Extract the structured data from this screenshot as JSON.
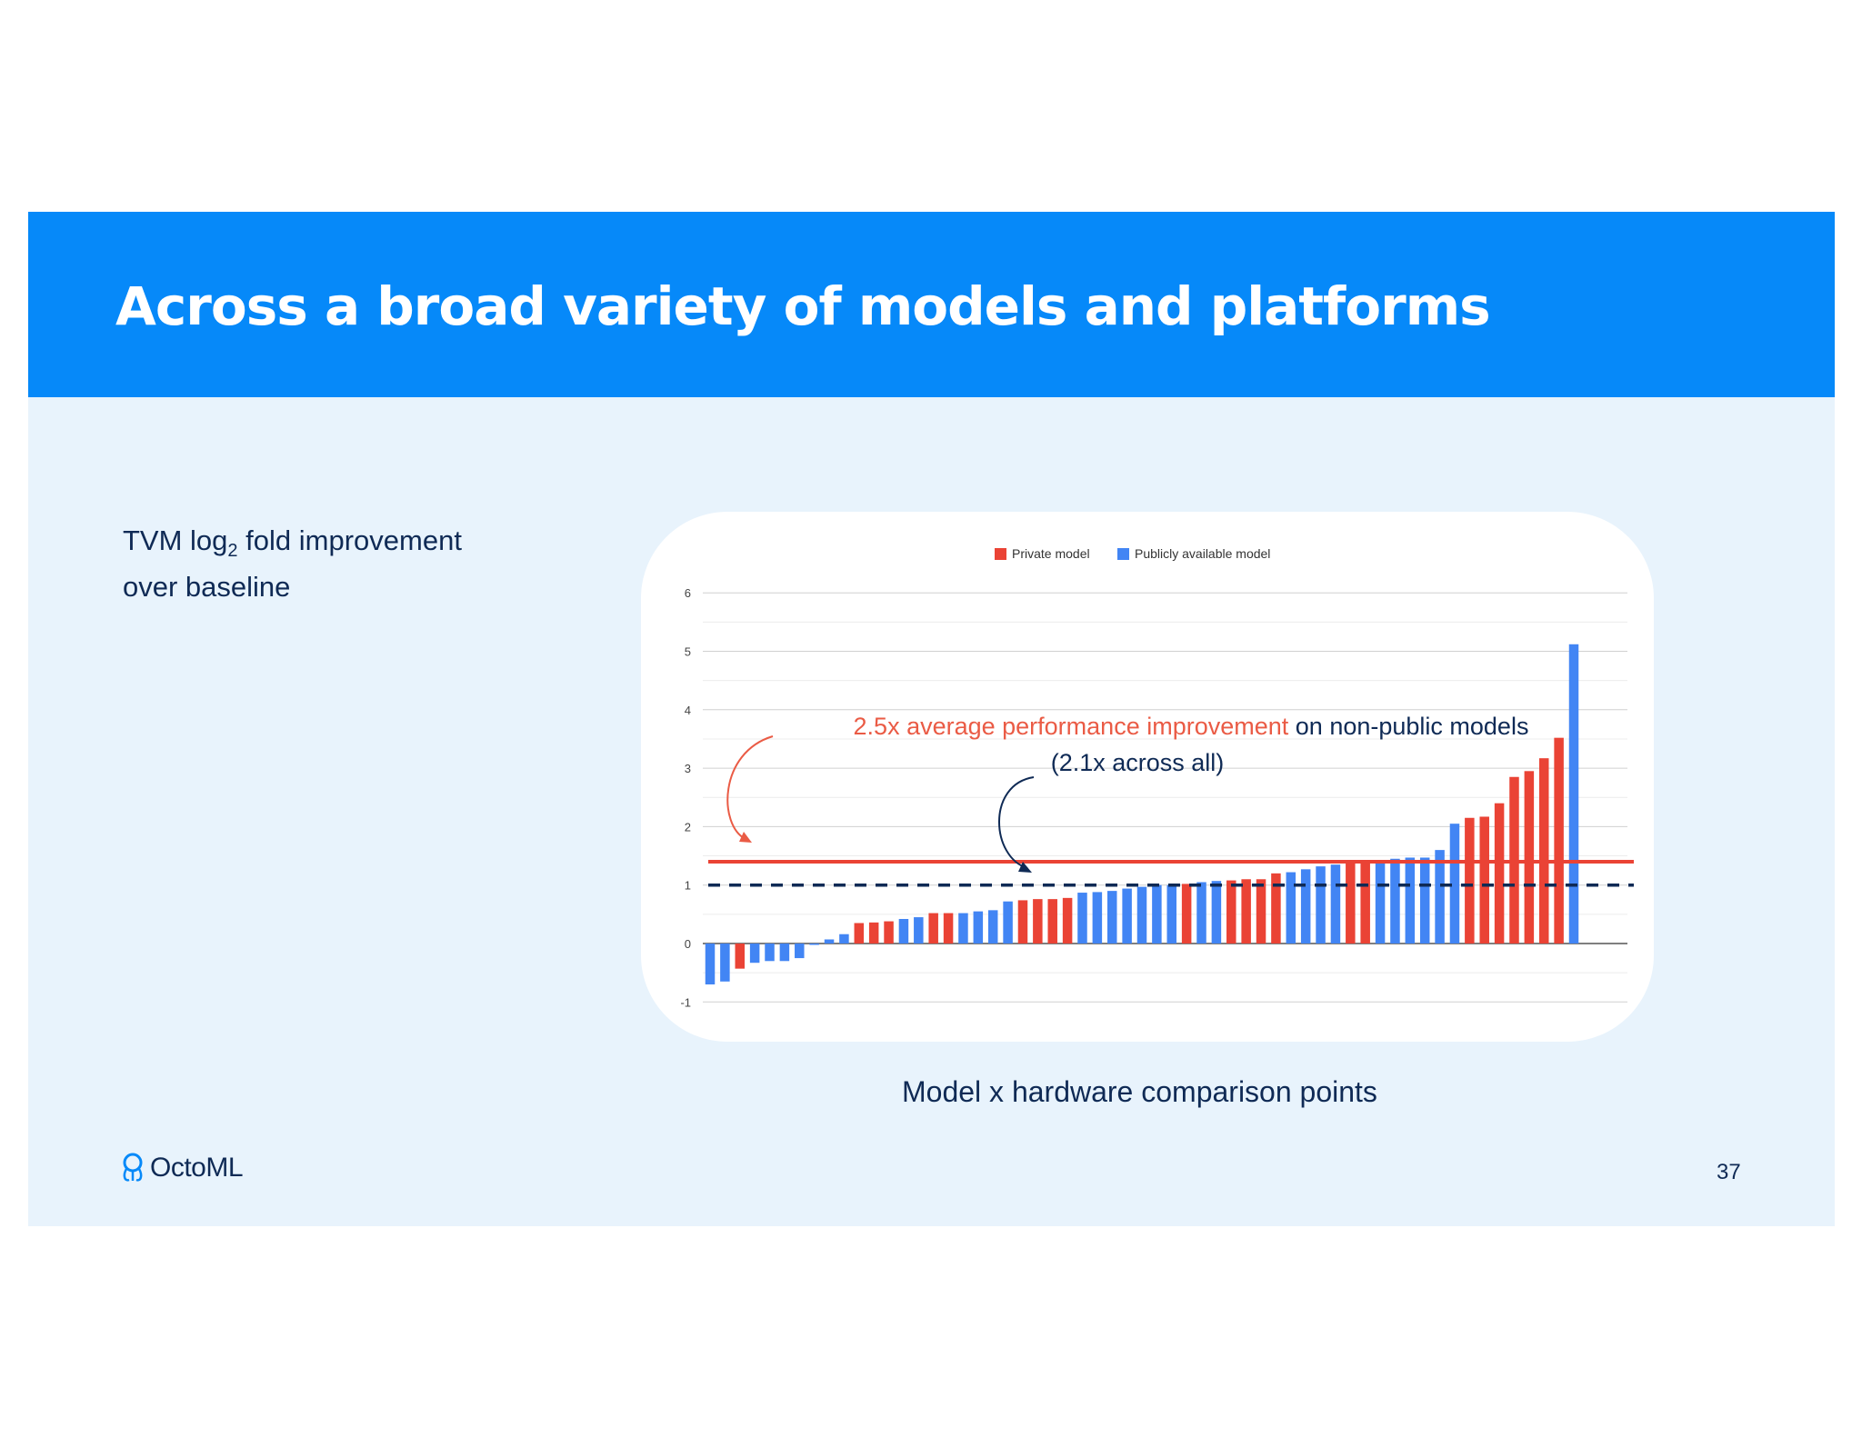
{
  "slide": {
    "title": "Across a broad variety of models and platforms",
    "y_caption_prefix": "TVM log",
    "y_caption_sub": "2",
    "y_caption_line1_rest": " fold improvement",
    "y_caption_line2": "over baseline",
    "x_caption": "Model x hardware comparison points",
    "logo_text": "OctoML",
    "page_number": "37"
  },
  "colors": {
    "header": "#0689f9",
    "background": "#e8f3fc",
    "private": "#ea4335",
    "public": "#4285f4",
    "average_line": "#ea4335",
    "overall_line": "#0f2a55",
    "annotation_red": "#ea5b45",
    "text_dark": "#0f2a55"
  },
  "chart_data": {
    "type": "bar",
    "title": "",
    "xlabel": "Model x hardware comparison points",
    "ylabel": "TVM log2 fold improvement over baseline",
    "ylim": [
      -1,
      6
    ],
    "yticks": [
      6,
      5,
      4,
      3,
      2,
      1,
      0,
      -1
    ],
    "grid": true,
    "legend_position": "top-center",
    "series": [
      {
        "name": "Private model",
        "color": "#ea4335"
      },
      {
        "name": "Publicly available model",
        "color": "#4285f4"
      }
    ],
    "bars": [
      {
        "s": 1,
        "v": -0.7
      },
      {
        "s": 1,
        "v": -0.65
      },
      {
        "s": 0,
        "v": -0.43
      },
      {
        "s": 1,
        "v": -0.33
      },
      {
        "s": 1,
        "v": -0.3
      },
      {
        "s": 1,
        "v": -0.3
      },
      {
        "s": 1,
        "v": -0.25
      },
      {
        "s": 1,
        "v": -0.02
      },
      {
        "s": 1,
        "v": 0.07
      },
      {
        "s": 1,
        "v": 0.16
      },
      {
        "s": 0,
        "v": 0.35
      },
      {
        "s": 0,
        "v": 0.36
      },
      {
        "s": 0,
        "v": 0.38
      },
      {
        "s": 1,
        "v": 0.42
      },
      {
        "s": 1,
        "v": 0.45
      },
      {
        "s": 0,
        "v": 0.52
      },
      {
        "s": 0,
        "v": 0.52
      },
      {
        "s": 1,
        "v": 0.52
      },
      {
        "s": 1,
        "v": 0.55
      },
      {
        "s": 1,
        "v": 0.57
      },
      {
        "s": 1,
        "v": 0.72
      },
      {
        "s": 0,
        "v": 0.74
      },
      {
        "s": 0,
        "v": 0.76
      },
      {
        "s": 0,
        "v": 0.76
      },
      {
        "s": 0,
        "v": 0.78
      },
      {
        "s": 1,
        "v": 0.87
      },
      {
        "s": 1,
        "v": 0.88
      },
      {
        "s": 1,
        "v": 0.9
      },
      {
        "s": 1,
        "v": 0.94
      },
      {
        "s": 1,
        "v": 0.97
      },
      {
        "s": 1,
        "v": 1.0
      },
      {
        "s": 1,
        "v": 1.0
      },
      {
        "s": 0,
        "v": 1.02
      },
      {
        "s": 1,
        "v": 1.05
      },
      {
        "s": 1,
        "v": 1.07
      },
      {
        "s": 0,
        "v": 1.08
      },
      {
        "s": 0,
        "v": 1.1
      },
      {
        "s": 0,
        "v": 1.1
      },
      {
        "s": 0,
        "v": 1.2
      },
      {
        "s": 1,
        "v": 1.22
      },
      {
        "s": 1,
        "v": 1.27
      },
      {
        "s": 1,
        "v": 1.32
      },
      {
        "s": 1,
        "v": 1.35
      },
      {
        "s": 0,
        "v": 1.37
      },
      {
        "s": 0,
        "v": 1.4
      },
      {
        "s": 1,
        "v": 1.42
      },
      {
        "s": 1,
        "v": 1.45
      },
      {
        "s": 1,
        "v": 1.47
      },
      {
        "s": 1,
        "v": 1.47
      },
      {
        "s": 1,
        "v": 1.6
      },
      {
        "s": 1,
        "v": 2.05
      },
      {
        "s": 0,
        "v": 2.15
      },
      {
        "s": 0,
        "v": 2.17
      },
      {
        "s": 0,
        "v": 2.4
      },
      {
        "s": 0,
        "v": 2.85
      },
      {
        "s": 0,
        "v": 2.95
      },
      {
        "s": 0,
        "v": 3.17
      },
      {
        "s": 0,
        "v": 3.52
      },
      {
        "s": 1,
        "v": 5.12
      }
    ],
    "reference_lines": [
      {
        "name": "private_average",
        "value": 1.4,
        "style": "solid"
      },
      {
        "name": "overall_average",
        "value": 1.0,
        "style": "dashed"
      }
    ],
    "annotations": {
      "red_text": "2.5x average performance improvement",
      "dark_text": " on non-public models",
      "line2": "(2.1x across all)"
    }
  }
}
